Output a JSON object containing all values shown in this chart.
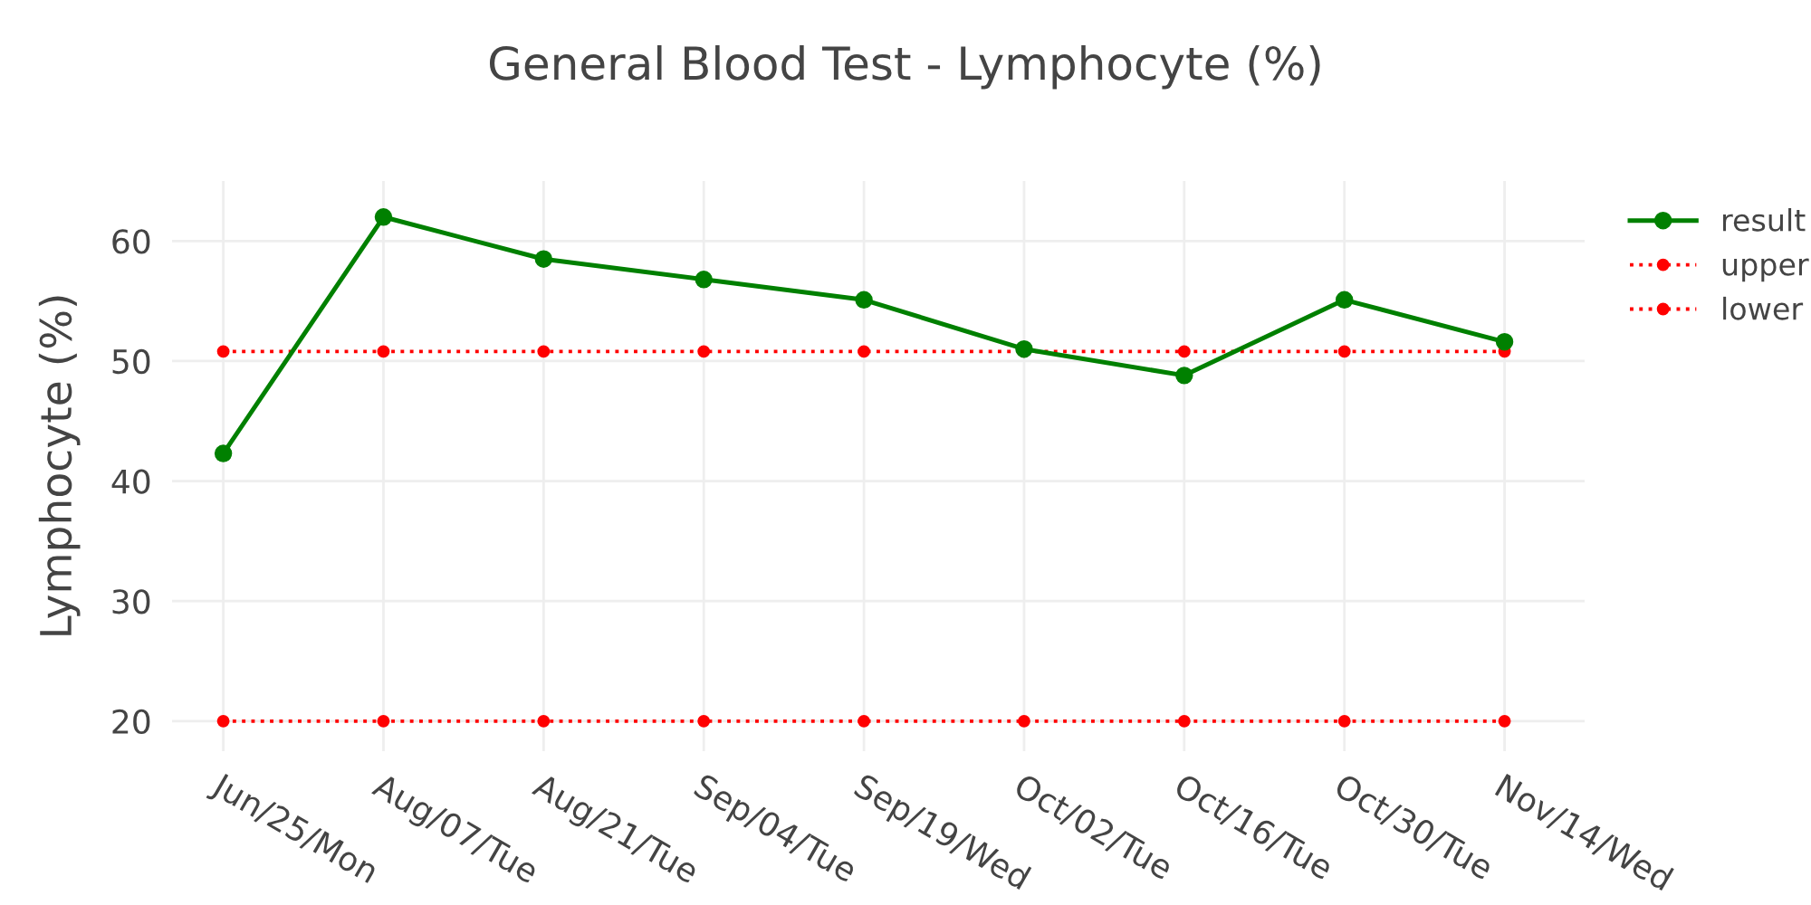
{
  "chart_data": {
    "type": "line",
    "title": "General Blood Test - Lymphocyte (%)",
    "ylabel": "Lymphocyte (%)",
    "categories": [
      "Jun/25/Mon",
      "Aug/07/Tue",
      "Aug/21/Tue",
      "Sep/04/Tue",
      "Sep/19/Wed",
      "Oct/02/Tue",
      "Oct/16/Tue",
      "Oct/30/Tue",
      "Nov/14/Wed"
    ],
    "series": [
      {
        "name": "result",
        "color": "#008000",
        "line_style": "solid",
        "values": [
          42.3,
          62.0,
          58.5,
          56.8,
          55.1,
          51.0,
          48.8,
          55.1,
          51.6
        ]
      },
      {
        "name": "upper",
        "color": "#ff0000",
        "line_style": "dotted",
        "values": [
          50.8,
          50.8,
          50.8,
          50.8,
          50.8,
          50.8,
          50.8,
          50.8,
          50.8
        ]
      },
      {
        "name": "lower",
        "color": "#ff0000",
        "line_style": "dotted",
        "values": [
          20,
          20,
          20,
          20,
          20,
          20,
          20,
          20,
          20
        ]
      }
    ],
    "ylim": [
      17.5,
      65
    ],
    "yticks": [
      20,
      30,
      40,
      50,
      60
    ],
    "grid": true,
    "legend": "top right",
    "marker": "circle"
  }
}
